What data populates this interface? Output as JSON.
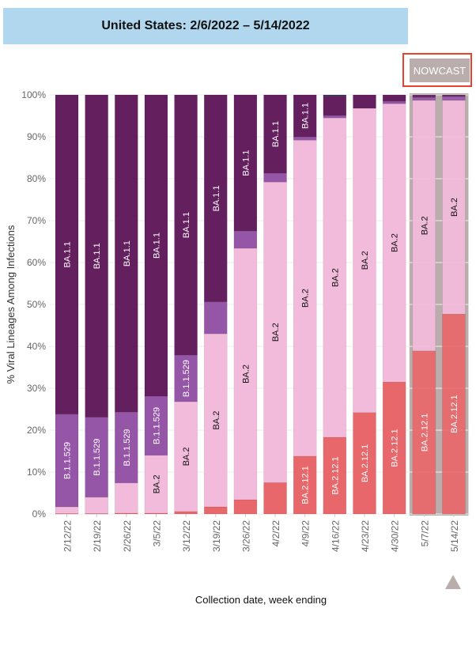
{
  "header": {
    "title": "United States: 2/6/2022 – 5/14/2022"
  },
  "nowcast_button": {
    "label": "NOWCAST"
  },
  "colors": {
    "BA.1.1": "#641f5f",
    "B.1.1.529": "#9556a7",
    "BA.2": "#f2bbdb",
    "BA.2.12.1": "#e8676a",
    "other": "#1e4a52",
    "nowcast_bg": "#b9aeac",
    "title_bg": "#b1d7ee"
  },
  "chart_data": {
    "type": "bar",
    "stacked": true,
    "title": "United States: 2/6/2022 – 5/14/2022",
    "xlabel": "Collection date, week ending",
    "ylabel": "% Viral Lineages Among Infections",
    "ylim": [
      0,
      100
    ],
    "yticks": [
      "0%",
      "10%",
      "20%",
      "30%",
      "40%",
      "50%",
      "60%",
      "70%",
      "80%",
      "90%",
      "100%"
    ],
    "grid": true,
    "categories": [
      "2/12/22",
      "2/19/22",
      "2/26/22",
      "3/5/22",
      "3/12/22",
      "3/19/22",
      "3/26/22",
      "4/2/22",
      "4/9/22",
      "4/16/22",
      "4/23/22",
      "4/30/22",
      "5/7/22",
      "5/14/22"
    ],
    "nowcast_categories": [
      "5/7/22",
      "5/14/22"
    ],
    "series": [
      {
        "name": "BA.2.12.1",
        "values": [
          0.1,
          0.1,
          0.2,
          0.2,
          0.6,
          1.7,
          3.4,
          7.5,
          13.8,
          18.3,
          24.2,
          31.5,
          38.9,
          47.7
        ],
        "labels": [
          false,
          false,
          false,
          false,
          false,
          false,
          false,
          false,
          true,
          true,
          true,
          true,
          true,
          true
        ]
      },
      {
        "name": "BA.2",
        "values": [
          1.6,
          3.9,
          7.2,
          13.8,
          26.2,
          41.3,
          60.0,
          71.7,
          75.4,
          76.2,
          72.6,
          66.4,
          59.8,
          51.0
        ],
        "labels": [
          false,
          false,
          false,
          true,
          true,
          true,
          true,
          true,
          true,
          true,
          true,
          true,
          true,
          true
        ]
      },
      {
        "name": "B.1.1.529",
        "values": [
          22.1,
          19.1,
          16.9,
          14.1,
          11.1,
          7.6,
          4.1,
          2.1,
          0.8,
          0.6,
          0.0,
          0.6,
          0.7,
          0.9
        ],
        "labels": [
          true,
          true,
          true,
          true,
          true,
          false,
          false,
          false,
          false,
          false,
          false,
          false,
          false,
          false
        ]
      },
      {
        "name": "BA.1.1",
        "values": [
          76.2,
          76.9,
          75.7,
          71.9,
          62.1,
          49.4,
          32.5,
          18.7,
          10.0,
          4.7,
          3.2,
          1.5,
          0.6,
          0.4
        ],
        "labels": [
          true,
          true,
          true,
          true,
          true,
          true,
          true,
          true,
          true,
          false,
          false,
          false,
          false,
          false
        ]
      },
      {
        "name": "other",
        "values": [
          0,
          0,
          0,
          0,
          0,
          0,
          0,
          0,
          0,
          0.2,
          0,
          0,
          0,
          0
        ],
        "labels": [
          false,
          false,
          false,
          false,
          false,
          false,
          false,
          false,
          false,
          false,
          false,
          false,
          false,
          false
        ]
      }
    ]
  },
  "scroll_arrow": {
    "icon": "triangle-up-icon"
  }
}
